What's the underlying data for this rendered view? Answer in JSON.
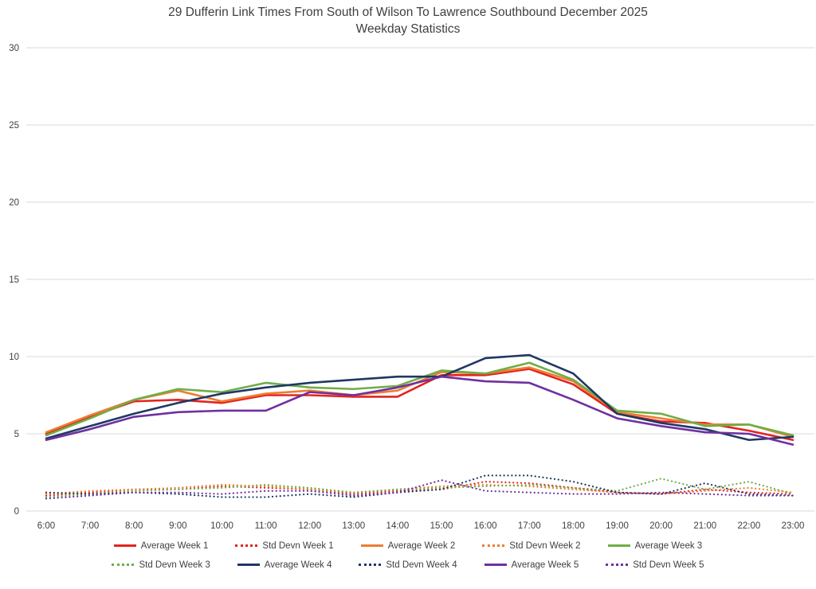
{
  "header": {
    "title_line1": "29 Dufferin Link Times From South of Wilson To Lawrence Southbound December 2025",
    "title_line2": "Weekday Statistics"
  },
  "colors": {
    "gridline": "#d9d9d9",
    "axis_text": "#404040",
    "title_text": "#3f3f3f",
    "week1": "#e42320",
    "week2": "#ed7d31",
    "week3": "#70ad47",
    "week4": "#1f3864",
    "week5": "#7030a0"
  },
  "chart_data": {
    "type": "line",
    "title": "29 Dufferin Link Times From South of Wilson To Lawrence Southbound December 2025 Weekday Statistics",
    "xlabel": "",
    "ylabel": "",
    "ylim": [
      0,
      30
    ],
    "ytick_step": 5,
    "grid": "horizontal",
    "legend_position": "bottom",
    "legend_per_row": 5,
    "x": [
      "6:00",
      "7:00",
      "8:00",
      "9:00",
      "10:00",
      "11:00",
      "12:00",
      "13:00",
      "14:00",
      "15:00",
      "16:00",
      "17:00",
      "18:00",
      "19:00",
      "20:00",
      "21:00",
      "22:00",
      "23:00"
    ],
    "series": [
      {
        "name": "Average Week 1",
        "color": "#e42320",
        "dashed": false,
        "values": [
          5.0,
          6.1,
          7.1,
          7.2,
          7.0,
          7.5,
          7.5,
          7.4,
          7.4,
          8.8,
          8.8,
          9.2,
          8.2,
          6.3,
          5.8,
          5.7,
          5.2,
          4.6
        ]
      },
      {
        "name": "Std Devn Week 1",
        "color": "#e42320",
        "dashed": true,
        "values": [
          1.0,
          1.2,
          1.4,
          1.4,
          1.6,
          1.5,
          1.4,
          1.1,
          1.3,
          1.4,
          1.9,
          1.8,
          1.5,
          1.2,
          1.1,
          1.4,
          1.2,
          1.1
        ]
      },
      {
        "name": "Average Week 2",
        "color": "#ed7d31",
        "dashed": false,
        "values": [
          5.1,
          6.2,
          7.2,
          7.8,
          7.1,
          7.6,
          7.8,
          7.5,
          7.8,
          9.0,
          8.9,
          9.3,
          8.4,
          6.4,
          6.0,
          5.6,
          5.6,
          4.8
        ]
      },
      {
        "name": "Std Devn Week 2",
        "color": "#ed7d31",
        "dashed": true,
        "values": [
          1.1,
          1.3,
          1.4,
          1.5,
          1.7,
          1.6,
          1.4,
          1.2,
          1.4,
          1.6,
          1.7,
          1.6,
          1.4,
          1.2,
          1.1,
          1.3,
          1.5,
          1.2
        ]
      },
      {
        "name": "Average Week 3",
        "color": "#70ad47",
        "dashed": false,
        "values": [
          4.9,
          6.0,
          7.2,
          7.9,
          7.7,
          8.3,
          8.0,
          7.9,
          8.1,
          9.1,
          8.9,
          9.6,
          8.5,
          6.5,
          6.3,
          5.5,
          5.6,
          4.9
        ]
      },
      {
        "name": "Std Devn Week 3",
        "color": "#70ad47",
        "dashed": true,
        "values": [
          0.9,
          1.1,
          1.3,
          1.4,
          1.5,
          1.7,
          1.5,
          1.2,
          1.4,
          1.5,
          1.6,
          1.7,
          1.5,
          1.3,
          2.1,
          1.4,
          1.9,
          1.1
        ]
      },
      {
        "name": "Average Week 4",
        "color": "#1f3864",
        "dashed": false,
        "values": [
          4.7,
          5.5,
          6.3,
          7.0,
          7.6,
          8.0,
          8.3,
          8.5,
          8.7,
          8.7,
          9.9,
          10.1,
          8.9,
          6.3,
          5.7,
          5.3,
          4.6,
          4.8
        ]
      },
      {
        "name": "Std Devn Week 4",
        "color": "#1f3864",
        "dashed": true,
        "values": [
          1.2,
          1.1,
          1.2,
          1.1,
          0.9,
          0.9,
          1.1,
          0.9,
          1.2,
          1.4,
          2.3,
          2.3,
          1.9,
          1.2,
          1.1,
          1.8,
          1.1,
          1.0
        ]
      },
      {
        "name": "Average Week 5",
        "color": "#7030a0",
        "dashed": false,
        "values": [
          4.6,
          5.3,
          6.1,
          6.4,
          6.5,
          6.5,
          7.7,
          7.5,
          8.0,
          8.7,
          8.4,
          8.3,
          7.2,
          6.0,
          5.5,
          5.1,
          5.0,
          4.3
        ]
      },
      {
        "name": "Std Devn Week 5",
        "color": "#7030a0",
        "dashed": true,
        "values": [
          0.8,
          1.0,
          1.2,
          1.2,
          1.1,
          1.3,
          1.3,
          1.0,
          1.2,
          2.0,
          1.3,
          1.2,
          1.1,
          1.1,
          1.2,
          1.1,
          1.0,
          1.0
        ]
      }
    ]
  }
}
